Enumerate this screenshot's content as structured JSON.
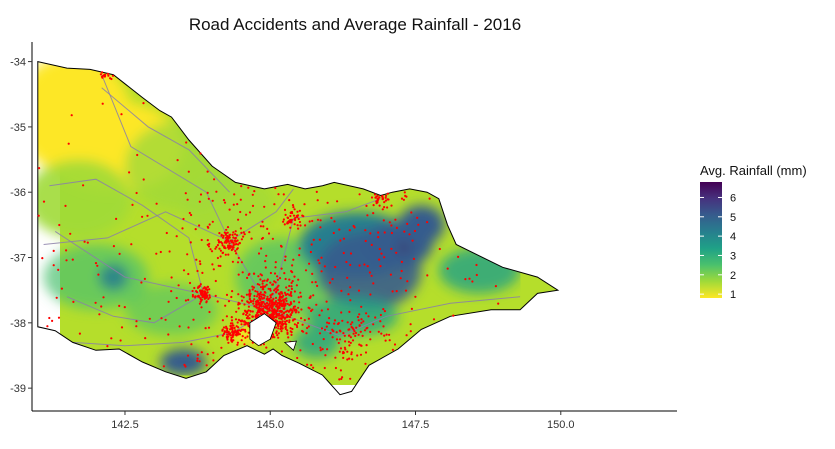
{
  "chart_data": {
    "type": "heatmap",
    "title": "Road Accidents and Average Rainfall - 2016",
    "xlabel": "",
    "ylabel": "",
    "x_ticks": [
      "142.5",
      "145.0",
      "147.5",
      "150.0"
    ],
    "x_tick_values": [
      142.5,
      145.0,
      147.5,
      150.0
    ],
    "y_ticks": [
      "-34",
      "-35",
      "-36",
      "-37",
      "-38",
      "-39"
    ],
    "y_tick_values": [
      -34,
      -35,
      -36,
      -37,
      -38,
      -39
    ],
    "xlim": [
      140.9,
      152.0
    ],
    "ylim": [
      -39.35,
      -33.7
    ],
    "grid": false,
    "legend": {
      "title": "Avg. Rainfall (mm)",
      "position": "right",
      "labels": [
        "6",
        "5",
        "4",
        "3",
        "2",
        "1"
      ],
      "values": [
        6,
        5,
        4,
        3,
        2,
        1
      ],
      "range": [
        0.8,
        6.8
      ],
      "palette": [
        "#440154",
        "#46327e",
        "#365c8d",
        "#277f8e",
        "#1fa187",
        "#4ac16d",
        "#a0da39",
        "#fde725"
      ]
    },
    "layers": [
      {
        "name": "rainfall",
        "kind": "raster",
        "color_scale": "viridis",
        "region": "Victoria"
      },
      {
        "name": "roads",
        "kind": "lines",
        "color": "#8a7fa8"
      },
      {
        "name": "accidents",
        "kind": "points",
        "color": "#ff0000",
        "clusters": [
          {
            "lon": 145.0,
            "lat": -37.82,
            "weight": 600,
            "spread": 0.22
          },
          {
            "lon": 144.3,
            "lat": -36.76,
            "weight": 90,
            "spread": 0.08
          },
          {
            "lon": 143.85,
            "lat": -37.56,
            "weight": 80,
            "spread": 0.07
          },
          {
            "lon": 144.35,
            "lat": -38.15,
            "weight": 80,
            "spread": 0.08
          },
          {
            "lon": 146.4,
            "lat": -38.2,
            "weight": 70,
            "spread": 0.2
          },
          {
            "lon": 142.2,
            "lat": -34.2,
            "weight": 30,
            "spread": 0.05
          },
          {
            "lon": 146.9,
            "lat": -36.1,
            "weight": 30,
            "spread": 0.05
          },
          {
            "lon": 145.4,
            "lat": -36.4,
            "weight": 40,
            "spread": 0.07
          }
        ],
        "scattered": 1100
      }
    ]
  }
}
